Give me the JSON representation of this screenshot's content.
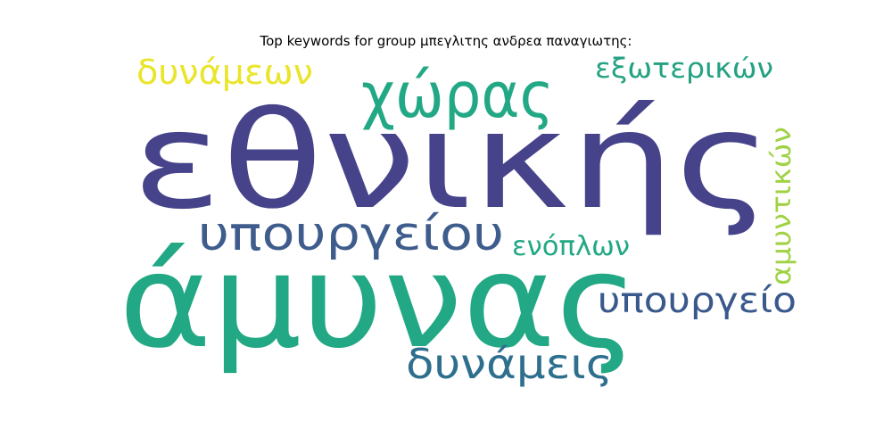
{
  "title": "Top keywords for group μπεγλιτης ανδρεα παναγιωτης:",
  "words": [
    {
      "text": "εθνικής",
      "color": "#46438a"
    },
    {
      "text": "άμυνας",
      "color": "#22a884"
    },
    {
      "text": "χώρας",
      "color": "#23a885"
    },
    {
      "text": "υπουργείου",
      "color": "#3f5d8c"
    },
    {
      "text": "δυνάμεων",
      "color": "#eae52b"
    },
    {
      "text": "εξωτερικών",
      "color": "#24a282"
    },
    {
      "text": "αμυντικών",
      "color": "#9fd244"
    },
    {
      "text": "ενόπλων",
      "color": "#22a884"
    },
    {
      "text": "υπουργείο",
      "color": "#39598c"
    },
    {
      "text": "δυνάμεις",
      "color": "#2e6f8e"
    }
  ]
}
